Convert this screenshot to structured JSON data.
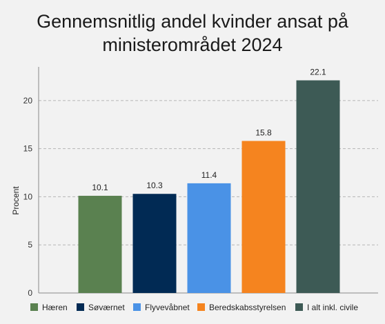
{
  "chart_data": {
    "type": "bar",
    "title_lines": [
      "Gennemsnitlig andel kvinder ansat på",
      "ministerområdet 2024"
    ],
    "ylabel": "Procent",
    "xlabel": "",
    "ylim": [
      0,
      23.5
    ],
    "yticks": [
      0,
      5,
      10,
      15,
      20
    ],
    "grid": true,
    "legend_position": "bottom",
    "categories": [
      "Hæren",
      "Søværnet",
      "Flyvevåbnet",
      "Beredskabsstyrelsen",
      "I alt inkl. civile"
    ],
    "values": [
      10.1,
      10.3,
      11.4,
      15.8,
      22.1
    ],
    "value_labels": [
      "10.1",
      "10.3",
      "11.4",
      "15.8",
      "22.1"
    ],
    "colors": [
      "#5a8150",
      "#012a54",
      "#4a92e6",
      "#f5841f",
      "#3d5a55"
    ]
  }
}
